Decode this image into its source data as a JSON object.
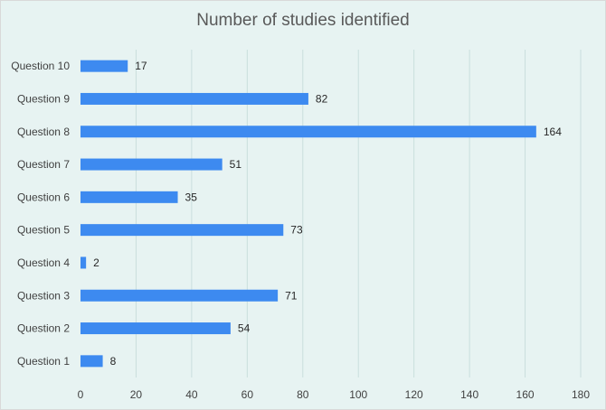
{
  "chart_data": {
    "type": "bar",
    "orientation": "horizontal",
    "title": "Number of studies identified",
    "xlabel": "",
    "ylabel": "",
    "categories": [
      "Question 1",
      "Question 2",
      "Question 3",
      "Question 4",
      "Question 5",
      "Question 6",
      "Question 7",
      "Question 8",
      "Question 9",
      "Question 10"
    ],
    "values": [
      8,
      54,
      71,
      2,
      73,
      35,
      51,
      164,
      82,
      17
    ],
    "xlim": [
      0,
      180
    ],
    "xticks": [
      0,
      20,
      40,
      60,
      80,
      100,
      120,
      140,
      160,
      180
    ],
    "grid": "vertical",
    "legend": "none",
    "data_labels": true,
    "colors": {
      "bar": "#3d8af0",
      "background": "#e7f3f2",
      "grid": "#c9dedd"
    }
  }
}
